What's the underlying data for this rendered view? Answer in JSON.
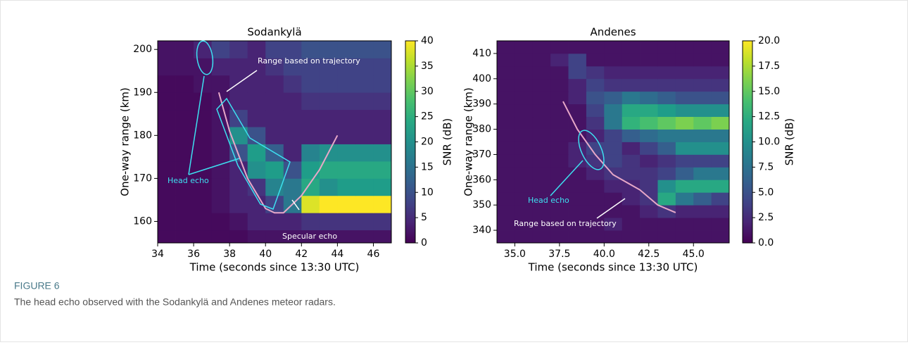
{
  "chart_data": [
    {
      "type": "heatmap",
      "title": "Sodankylä",
      "xlabel": "Time (seconds since 13:30 UTC)",
      "ylabel": "One-way range (km)",
      "xbins": [
        34,
        35,
        36,
        37,
        38,
        39,
        40,
        41,
        42,
        43,
        44,
        45,
        46,
        47
      ],
      "ybins": [
        154,
        158,
        162,
        166,
        170,
        174,
        178,
        182,
        186,
        190,
        194,
        198,
        202
      ],
      "values": [
        [
          1,
          1,
          1,
          1,
          1,
          2,
          2,
          2,
          2,
          2,
          2,
          2,
          2
        ],
        [
          1,
          1,
          1,
          1,
          2,
          4,
          4,
          4,
          6,
          6,
          6,
          6,
          6
        ],
        [
          1,
          1,
          1,
          2,
          4,
          4,
          8,
          16,
          38,
          40,
          40,
          40,
          40
        ],
        [
          1,
          1,
          1,
          2,
          4,
          6,
          18,
          16,
          24,
          20,
          22,
          22,
          22
        ],
        [
          1,
          1,
          1,
          2,
          4,
          20,
          22,
          10,
          22,
          24,
          24,
          24,
          24
        ],
        [
          1,
          1,
          1,
          2,
          10,
          22,
          12,
          4,
          18,
          20,
          20,
          20,
          20
        ],
        [
          1,
          1,
          1,
          2,
          20,
          10,
          4,
          4,
          4,
          4,
          4,
          4,
          4
        ],
        [
          1,
          1,
          1,
          2,
          8,
          4,
          4,
          4,
          4,
          4,
          4,
          4,
          4
        ],
        [
          1,
          1,
          1,
          2,
          4,
          4,
          4,
          4,
          6,
          6,
          6,
          6,
          6
        ],
        [
          1,
          1,
          2,
          2,
          4,
          4,
          4,
          6,
          8,
          8,
          8,
          8,
          8
        ],
        [
          2,
          2,
          2,
          4,
          4,
          4,
          6,
          8,
          8,
          8,
          8,
          8,
          8
        ],
        [
          2,
          2,
          4,
          8,
          6,
          4,
          8,
          8,
          10,
          10,
          10,
          10,
          10
        ]
      ],
      "xlim": [
        34,
        47
      ],
      "ylim": [
        155,
        202
      ],
      "xticks": [
        34,
        36,
        38,
        40,
        42,
        44,
        46
      ],
      "yticks": [
        160,
        170,
        180,
        190,
        200
      ],
      "colorbar": {
        "label": "SNR (dB)",
        "lim": [
          0,
          40
        ],
        "ticks": [
          0,
          5,
          10,
          15,
          20,
          25,
          30,
          35,
          40
        ],
        "colormap": "viridis"
      },
      "series": [
        {
          "color": "#e8a8c8",
          "x": [
            37.4,
            38,
            39,
            40,
            40.5,
            41,
            42,
            43,
            44
          ],
          "values": [
            190,
            181,
            170,
            163,
            162,
            162,
            166,
            172,
            180
          ]
        }
      ],
      "annotations": [
        {
          "text": "Range based on trajectory",
          "color": "#ffffff"
        },
        {
          "text": "Head echo",
          "color": "#3de0f0"
        },
        {
          "text": "Specular echo",
          "color": "#ffffff"
        }
      ]
    },
    {
      "type": "heatmap",
      "title": "Andenes",
      "xlabel": "Time (seconds since 13:30 UTC)",
      "ylabel": "One-way range (km)",
      "xbins": [
        34,
        35,
        36,
        37,
        38,
        39,
        40,
        41,
        42,
        43,
        44,
        45,
        46,
        47
      ],
      "ybins": [
        335,
        340,
        345,
        350,
        355,
        360,
        365,
        370,
        375,
        380,
        385,
        390,
        395,
        400,
        405,
        410,
        415
      ],
      "values": [
        [
          1,
          1,
          1,
          1,
          1,
          1,
          1,
          1,
          1,
          1,
          1,
          1,
          1
        ],
        [
          1,
          1,
          1,
          1,
          1,
          1,
          2,
          1,
          1,
          1,
          1,
          1,
          1
        ],
        [
          1,
          1,
          1,
          1,
          1,
          1,
          1,
          1,
          2,
          3,
          2,
          2,
          2
        ],
        [
          1,
          1,
          1,
          1,
          1,
          1,
          1,
          2,
          3,
          12,
          8,
          6,
          4
        ],
        [
          1,
          1,
          1,
          1,
          1,
          1,
          2,
          2,
          3,
          10,
          12,
          12,
          12
        ],
        [
          1,
          1,
          1,
          1,
          1,
          2,
          3,
          3,
          3,
          4,
          6,
          8,
          8
        ],
        [
          1,
          1,
          1,
          1,
          2,
          3,
          4,
          3,
          2,
          3,
          4,
          4,
          4
        ],
        [
          1,
          1,
          1,
          1,
          2,
          4,
          4,
          2,
          4,
          6,
          10,
          10,
          10
        ],
        [
          1,
          1,
          1,
          1,
          1,
          2,
          4,
          6,
          7,
          8,
          8,
          8,
          8
        ],
        [
          1,
          1,
          1,
          1,
          1,
          3,
          8,
          13,
          14,
          15,
          16,
          15,
          16
        ],
        [
          1,
          1,
          1,
          1,
          1,
          4,
          8,
          12,
          12,
          11,
          10,
          10,
          10
        ],
        [
          1,
          1,
          1,
          1,
          2,
          5,
          6,
          8,
          7,
          6,
          5,
          5,
          5
        ],
        [
          1,
          1,
          1,
          1,
          2,
          4,
          3,
          3,
          3,
          3,
          3,
          3,
          3
        ],
        [
          1,
          1,
          1,
          1,
          4,
          3,
          2,
          2,
          2,
          2,
          2,
          2,
          2
        ],
        [
          1,
          1,
          1,
          2,
          4,
          1,
          1,
          1,
          1,
          1,
          1,
          1,
          1
        ],
        [
          1,
          1,
          1,
          1,
          1,
          1,
          1,
          1,
          1,
          1,
          1,
          1,
          1
        ]
      ],
      "xlim": [
        34,
        47
      ],
      "ylim": [
        335,
        415
      ],
      "xticks": [
        {
          "value": 35,
          "label": "35.0"
        },
        37.5,
        {
          "value": 40,
          "label": "40.0"
        },
        42.5,
        {
          "value": 45,
          "label": "45.0"
        }
      ],
      "yticks": [
        340,
        350,
        360,
        370,
        380,
        390,
        400,
        410
      ],
      "colorbar": {
        "label": "SNR (dB)",
        "lim": [
          0,
          20
        ],
        "ticks": [
          {
            "value": 0,
            "label": "0.0"
          },
          2.5,
          {
            "value": 5,
            "label": "5.0"
          },
          7.5,
          {
            "value": 10,
            "label": "10.0"
          },
          12.5,
          {
            "value": 15,
            "label": "15.0"
          },
          17.5,
          {
            "value": 20,
            "label": "20.0"
          }
        ],
        "colormap": "viridis"
      },
      "series": [
        {
          "color": "#e8a8c8",
          "x": [
            37.7,
            38.5,
            39.5,
            40.5,
            42,
            43,
            44
          ],
          "values": [
            391,
            380,
            370,
            362,
            356,
            350,
            347
          ]
        }
      ],
      "annotations": [
        {
          "text": "Head echo",
          "color": "#3de0f0"
        },
        {
          "text": "Range based on trajectory",
          "color": "#ffffff"
        }
      ]
    }
  ],
  "caption": {
    "label": "FIGURE 6",
    "text": "The head echo observed with the Sodankylä and Andenes meteor radars."
  }
}
